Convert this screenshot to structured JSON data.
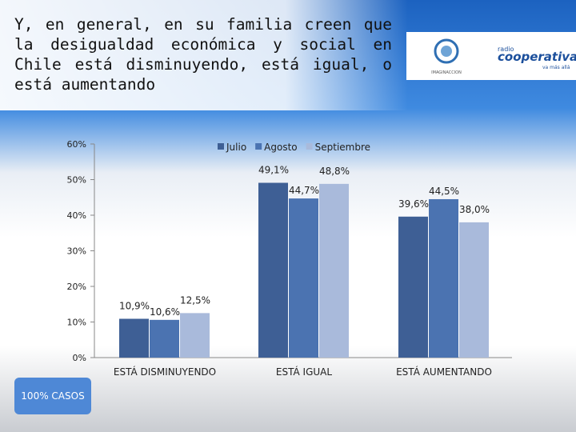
{
  "title": "Y, en general, en su familia creen que la desigualdad económica y social en Chile está disminuyendo, está igual, o está aumentando",
  "logo": {
    "brand": "radio",
    "name": "cooperativa",
    "tagline": "va más allá",
    "partner": "IMAGINACCION"
  },
  "note": "100% CASOS",
  "chart_data": {
    "type": "bar",
    "categories": [
      "ESTÁ DISMINUYENDO",
      "ESTÁ IGUAL",
      "ESTÁ AUMENTANDO"
    ],
    "series": [
      {
        "name": "Julio",
        "color": "#3e5f95",
        "values": [
          10.9,
          49.1,
          39.6
        ],
        "value_labels": [
          "10,9%",
          "49,1%",
          "39,6%"
        ]
      },
      {
        "name": "Agosto",
        "color": "#4b73b1",
        "values": [
          10.6,
          44.7,
          44.5
        ],
        "value_labels": [
          "10,6%",
          "44,7%",
          "44,5%"
        ]
      },
      {
        "name": "Septiembre",
        "color": "#a9badb",
        "values": [
          12.5,
          48.8,
          38.0
        ],
        "value_labels": [
          "12,5%",
          "48,8%",
          "38,0%"
        ]
      }
    ],
    "ylim": [
      0,
      60
    ],
    "yticks": [
      {
        "value": 0,
        "label": "0%"
      },
      {
        "value": 10,
        "label": "10%"
      },
      {
        "value": 20,
        "label": "20%"
      },
      {
        "value": 30,
        "label": "30%"
      },
      {
        "value": 40,
        "label": "40%"
      },
      {
        "value": 50,
        "label": "50%"
      },
      {
        "value": 60,
        "label": "60%"
      }
    ],
    "legend": "top"
  }
}
